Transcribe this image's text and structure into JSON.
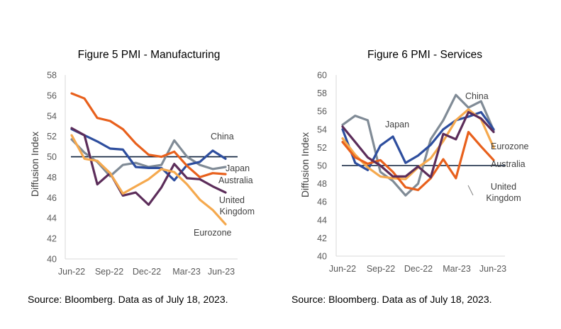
{
  "chart_data": [
    {
      "type": "line",
      "title": "Figure 5 PMI - Manufacturing",
      "xlabel": "",
      "ylabel": "Diffusion Index",
      "ylim": [
        40,
        58
      ],
      "yticks": [
        40,
        42,
        44,
        46,
        48,
        50,
        52,
        54,
        56,
        58
      ],
      "xtick_labels": [
        "Jun-22",
        "Sep-22",
        "Dec-22",
        "Mar-23",
        "Jun-23"
      ],
      "x": [
        "Jun-22",
        "Jul-22",
        "Aug-22",
        "Sep-22",
        "Oct-22",
        "Nov-22",
        "Dec-22",
        "Jan-23",
        "Feb-23",
        "Mar-23",
        "Apr-23",
        "May-23",
        "Jun-23"
      ],
      "reference_line": 50,
      "source": "Source: Bloomberg. Data as of July 18, 2023.",
      "series": [
        {
          "name": "China",
          "color": "#808B96",
          "values": [
            51.7,
            50.4,
            49.5,
            48.1,
            49.2,
            49.4,
            49.0,
            49.2,
            51.6,
            50.0,
            49.2,
            48.8,
            49.0
          ]
        },
        {
          "name": "Japan",
          "color": "#2E4E9E",
          "values": [
            52.7,
            52.1,
            51.5,
            50.8,
            50.7,
            49.0,
            48.9,
            48.9,
            47.7,
            49.2,
            49.5,
            50.6,
            49.8
          ]
        },
        {
          "name": "Australia",
          "color": "#E8601C",
          "values": [
            56.2,
            55.7,
            53.8,
            53.5,
            52.7,
            51.3,
            50.2,
            50.0,
            50.5,
            49.1,
            48.0,
            48.4,
            48.3
          ]
        },
        {
          "name": "United Kingdom",
          "color": "#5C2D5A",
          "values": [
            52.8,
            52.1,
            47.3,
            48.4,
            46.2,
            46.5,
            45.3,
            47.0,
            49.3,
            47.9,
            47.8,
            47.1,
            46.5
          ]
        },
        {
          "name": "Eurozone",
          "color": "#F5A94E",
          "values": [
            52.1,
            49.8,
            49.6,
            48.4,
            46.4,
            47.1,
            47.8,
            48.8,
            48.5,
            47.3,
            45.8,
            44.8,
            43.4
          ]
        }
      ]
    },
    {
      "type": "line",
      "title": "Figure 6 PMI - Services",
      "xlabel": "",
      "ylabel": "Diffusion Index",
      "ylim": [
        40,
        60
      ],
      "yticks": [
        40,
        42,
        44,
        46,
        48,
        50,
        52,
        54,
        56,
        58,
        60
      ],
      "xtick_labels": [
        "Jun-22",
        "Sep-22",
        "Dec-22",
        "Mar-23",
        "Jun-23"
      ],
      "x": [
        "Jun-22",
        "Jul-22",
        "Aug-22",
        "Sep-22",
        "Oct-22",
        "Nov-22",
        "Dec-22",
        "Jan-23",
        "Feb-23",
        "Mar-23",
        "Apr-23",
        "May-23",
        "Jun-23"
      ],
      "reference_line": 50,
      "source": "Source: Bloomberg. Data as of July 18, 2023.",
      "series": [
        {
          "name": "China",
          "color": "#808B96",
          "values": [
            54.5,
            55.5,
            55.0,
            49.3,
            48.3,
            46.7,
            48.0,
            52.9,
            55.0,
            57.8,
            56.4,
            57.1,
            53.9
          ]
        },
        {
          "name": "Japan",
          "color": "#2E4E9E",
          "values": [
            54.0,
            50.3,
            49.5,
            52.2,
            53.2,
            50.3,
            51.1,
            52.3,
            54.0,
            55.0,
            55.4,
            55.9,
            54.0
          ]
        },
        {
          "name": "Eurozone",
          "color": "#F5A94E",
          "values": [
            53.0,
            51.2,
            49.8,
            48.8,
            48.6,
            48.5,
            49.8,
            50.8,
            52.7,
            55.0,
            56.2,
            55.1,
            52.0
          ]
        },
        {
          "name": "Australia",
          "color": "#E8601C",
          "values": [
            52.6,
            50.9,
            50.2,
            50.6,
            49.3,
            47.6,
            47.3,
            48.6,
            50.7,
            48.6,
            53.7,
            52.1,
            50.6
          ]
        },
        {
          "name": "United Kingdom",
          "color": "#5C2D5A",
          "values": [
            54.3,
            52.6,
            50.9,
            50.0,
            48.8,
            48.8,
            49.9,
            48.7,
            53.5,
            52.9,
            55.9,
            55.2,
            53.7
          ]
        }
      ]
    }
  ]
}
